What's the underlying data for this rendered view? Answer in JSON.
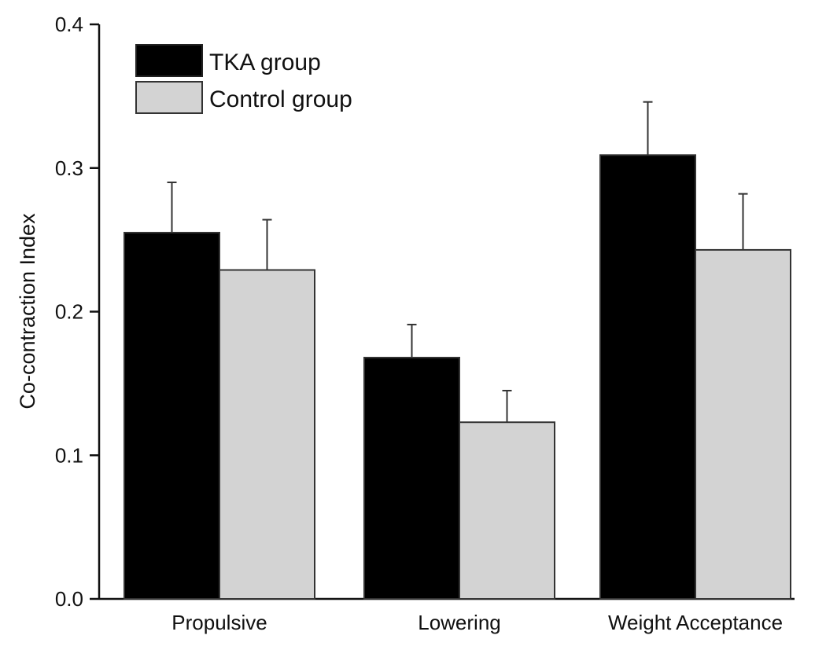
{
  "chart_data": {
    "type": "bar",
    "title": "",
    "xlabel": "",
    "ylabel": "Co-contraction Index",
    "ylim": [
      0,
      0.4
    ],
    "yticks": [
      "0.0",
      "0.1",
      "0.2",
      "0.3",
      "0.4"
    ],
    "categories": [
      "Propulsive",
      "Lowering",
      "Weight Acceptance"
    ],
    "series": [
      {
        "name": "TKA group",
        "color": "#000000",
        "values": [
          0.255,
          0.168,
          0.309
        ],
        "error": [
          0.035,
          0.023,
          0.037
        ]
      },
      {
        "name": "Control group",
        "color": "#d3d3d3",
        "values": [
          0.229,
          0.123,
          0.243
        ],
        "error": [
          0.035,
          0.022,
          0.039
        ]
      }
    ],
    "legend": "top-left",
    "grid": false,
    "error_bars": "upper only"
  }
}
